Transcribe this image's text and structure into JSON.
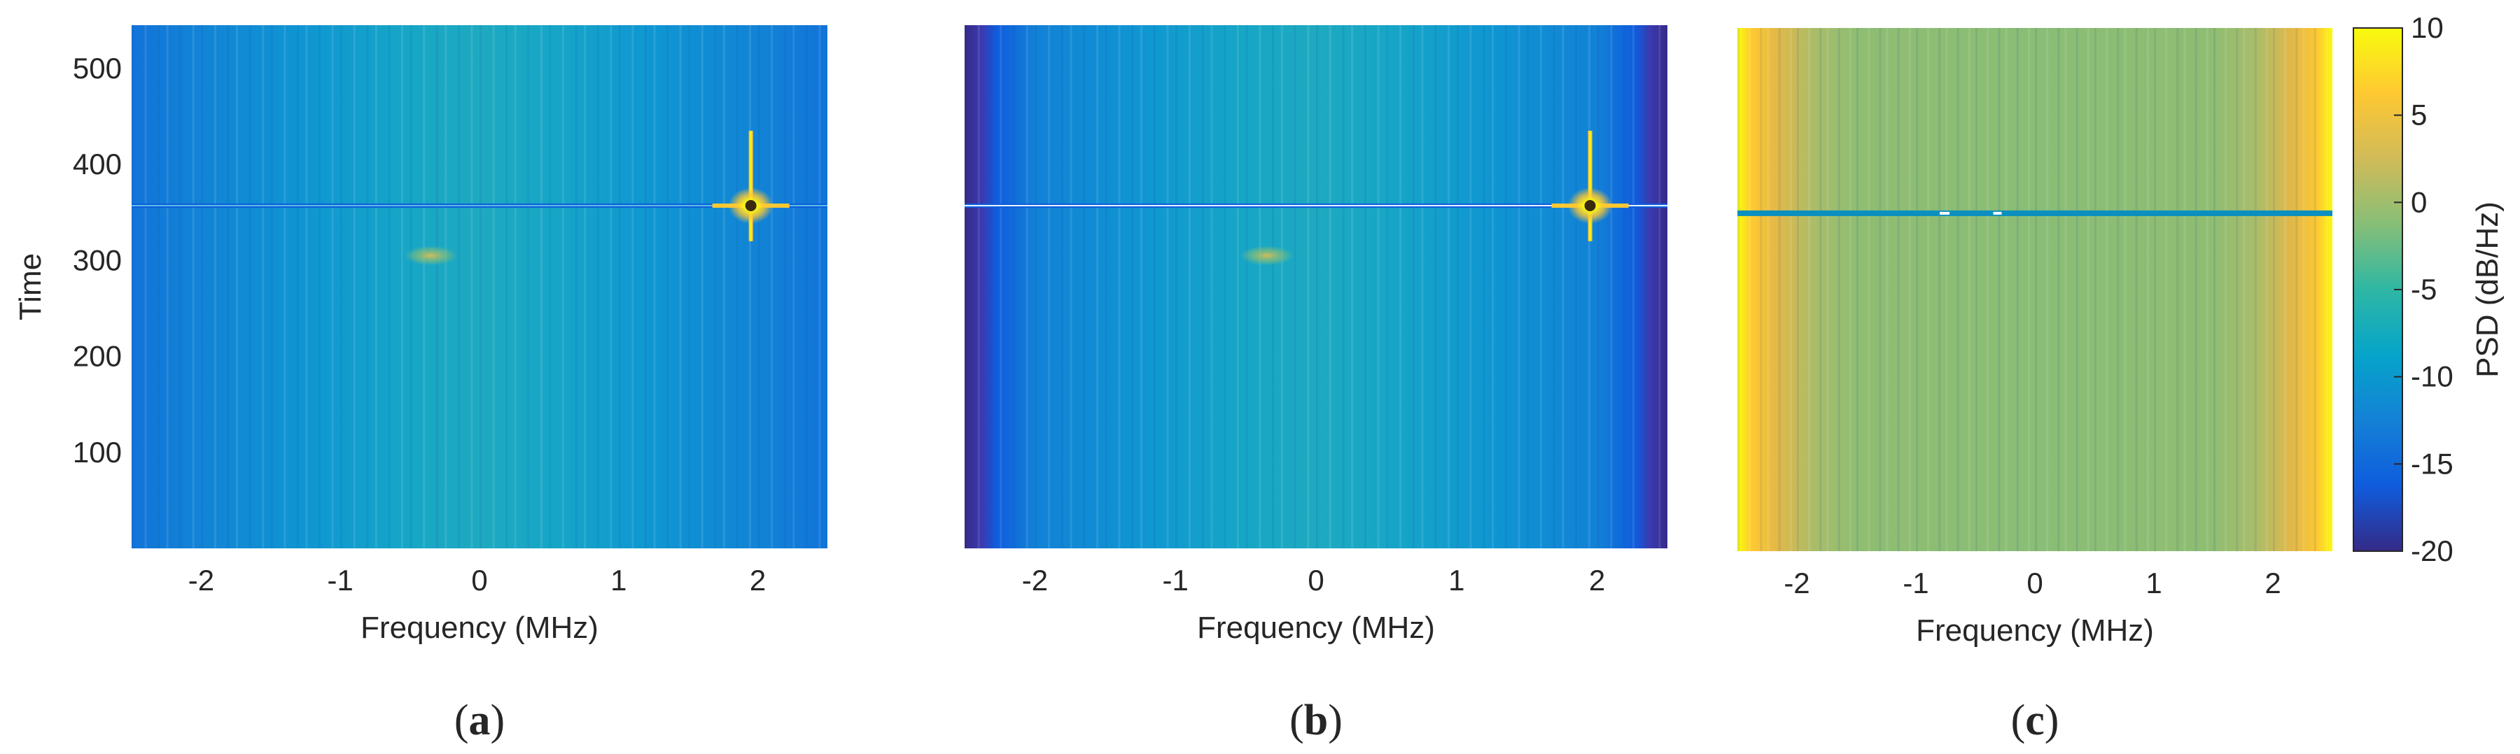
{
  "panels": [
    {
      "id": "a",
      "panel_label": "(a)",
      "panel_letter": "a",
      "variant": "a",
      "chart_data": {
        "type": "heatmap",
        "xlabel": "Frequency (MHz)",
        "ylabel": "Time",
        "xlim": [
          -2.5,
          2.5
        ],
        "ylim": [
          0,
          545
        ],
        "x_ticks": [
          -2,
          -1,
          0,
          1,
          2
        ],
        "y_ticks": [
          100,
          200,
          300,
          400,
          500
        ],
        "features": [
          {
            "kind": "horizontal-burst",
            "time": 357
          },
          {
            "kind": "tone-peak",
            "frequency": 1.95,
            "time": 357,
            "time_span": [
              320,
              435
            ]
          },
          {
            "kind": "weak-spot",
            "frequency": -0.35,
            "time": 305
          }
        ]
      }
    },
    {
      "id": "b",
      "panel_label": "(b)",
      "panel_letter": "b",
      "variant": "b",
      "chart_data": {
        "type": "heatmap",
        "xlabel": "Frequency (MHz)",
        "ylabel": "",
        "xlim": [
          -2.5,
          2.5
        ],
        "ylim": [
          0,
          545
        ],
        "x_ticks": [
          -2,
          -1,
          0,
          1,
          2
        ],
        "y_ticks": [],
        "features": [
          {
            "kind": "horizontal-burst",
            "time": 357
          },
          {
            "kind": "tone-peak",
            "frequency": 1.95,
            "time": 357,
            "time_span": [
              320,
              435
            ]
          },
          {
            "kind": "weak-spot",
            "frequency": -0.35,
            "time": 305
          },
          {
            "kind": "band-edge-low-psd",
            "frequency_ranges": [
              [
                -2.5,
                -2.32
              ],
              [
                2.32,
                2.5
              ]
            ]
          }
        ]
      }
    },
    {
      "id": "c",
      "panel_label": "(c)",
      "panel_letter": "c",
      "variant": "c",
      "chart_data": {
        "type": "heatmap",
        "xlabel": "Frequency (MHz)",
        "ylabel": "",
        "xlim": [
          -2.5,
          2.5
        ],
        "ylim": [
          0,
          545
        ],
        "x_ticks": [
          -2,
          -1,
          0,
          1,
          2
        ],
        "y_ticks": [],
        "features": [
          {
            "kind": "horizontal-dip",
            "time": 352
          },
          {
            "kind": "band-edge-high-psd",
            "frequency_ranges": [
              [
                -2.5,
                -1.9
              ],
              [
                1.9,
                2.5
              ]
            ]
          }
        ]
      }
    }
  ],
  "colorbar": {
    "label": "PSD (dB/Hz)",
    "range": [
      -20,
      10
    ],
    "ticks": [
      10,
      5,
      0,
      -5,
      -10,
      -15,
      -20
    ],
    "colormap": "parula",
    "colors": [
      "#352a87",
      "#0f5cdd",
      "#1481d6",
      "#06a4ca",
      "#2eb7a4",
      "#87bf77",
      "#d1bb59",
      "#fec832",
      "#f9fb0e"
    ]
  }
}
